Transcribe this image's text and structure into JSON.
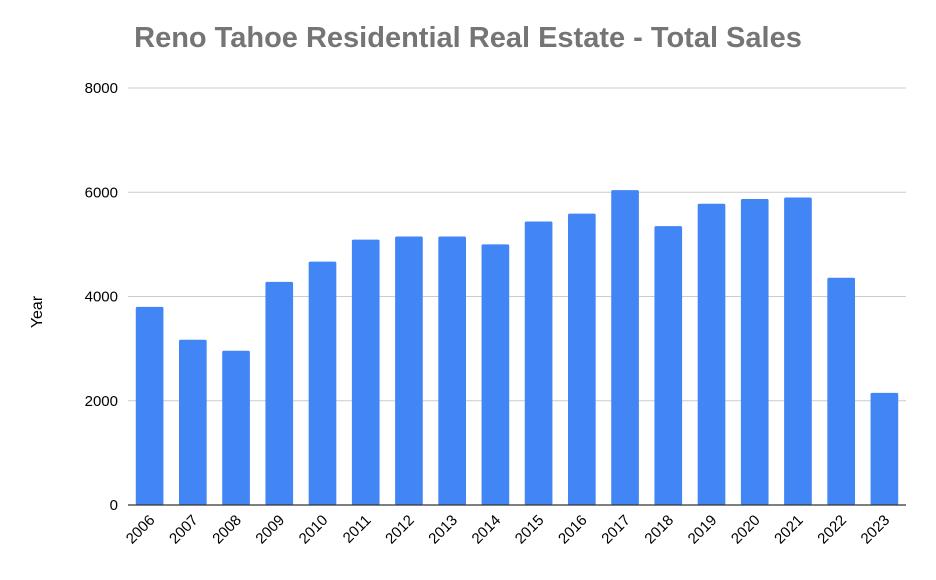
{
  "chart_data": {
    "type": "bar",
    "title": "Reno Tahoe Residential Real Estate - Total Sales",
    "xlabel": "",
    "ylabel": "Year",
    "categories": [
      "2006",
      "2007",
      "2008",
      "2009",
      "2010",
      "2011",
      "2012",
      "2013",
      "2014",
      "2015",
      "2016",
      "2017",
      "2018",
      "2019",
      "2020",
      "2021",
      "2022",
      "2023"
    ],
    "values": [
      3800,
      3170,
      2960,
      4280,
      4670,
      5090,
      5150,
      5150,
      5000,
      5440,
      5590,
      6040,
      5350,
      5780,
      5870,
      5900,
      4360,
      2150
    ],
    "ylim": [
      0,
      8000
    ],
    "yticks": [
      "0",
      "2000",
      "4000",
      "6000",
      "8000"
    ],
    "grid": true,
    "bar_color": "#4285F4"
  }
}
